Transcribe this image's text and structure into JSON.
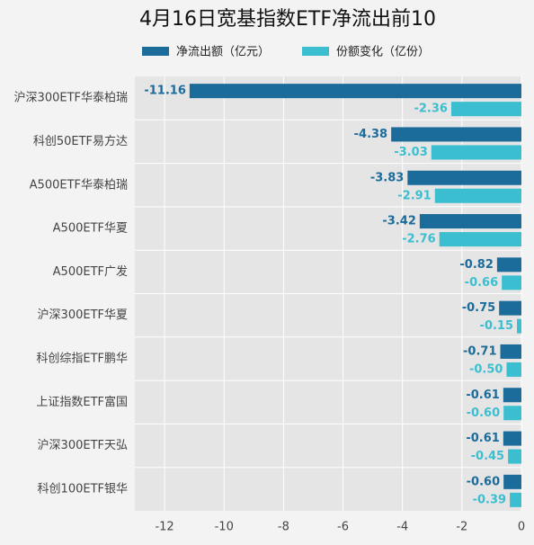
{
  "chart_data": {
    "type": "hbar",
    "title": "4月16日宽基指数ETF净流出前10",
    "categories": [
      "沪深300ETF华泰柏瑞",
      "科创50ETF易方达",
      "A500ETF华泰柏瑞",
      "A500ETF华夏",
      "A500ETF广发",
      "沪深300ETF华夏",
      "科创综指ETF鹏华",
      "上证指数ETF富国",
      "沪深300ETF天弘",
      "科创100ETF银华"
    ],
    "series": [
      {
        "name": "净流出额（亿元）",
        "color": "#1b6b9b",
        "values": [
          -11.16,
          -4.38,
          -3.83,
          -3.42,
          -0.82,
          -0.75,
          -0.71,
          -0.61,
          -0.61,
          -0.6
        ],
        "value_labels": [
          "-11.16",
          "-4.38",
          "-3.83",
          "-3.42",
          "-0.82",
          "-0.75",
          "-0.71",
          "-0.61",
          "-0.61",
          "-0.60"
        ]
      },
      {
        "name": "份额变化（亿份）",
        "color": "#3bbfd0",
        "values": [
          -2.36,
          -3.03,
          -2.91,
          -2.76,
          -0.66,
          -0.15,
          -0.5,
          -0.6,
          -0.45,
          -0.39
        ],
        "value_labels": [
          "-2.36",
          "-3.03",
          "-2.91",
          "-2.76",
          "-0.66",
          "-0.15",
          "-0.50",
          "-0.60",
          "-0.45",
          "-0.39"
        ]
      }
    ],
    "xlim": [
      -13,
      0
    ],
    "xticks": [
      -12,
      -10,
      -8,
      -6,
      -4,
      -2,
      0
    ],
    "grid": true
  }
}
